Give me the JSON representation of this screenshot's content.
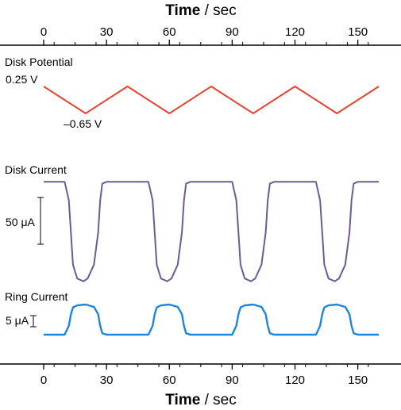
{
  "chart_data": {
    "type": "line",
    "top_axis": {
      "title_bold": "Time",
      "title_unit": " / sec",
      "ticks": [
        0,
        30,
        60,
        90,
        120,
        150
      ],
      "range": [
        0,
        160
      ]
    },
    "bottom_axis": {
      "title_bold": "Time",
      "title_unit": " / sec",
      "ticks": [
        0,
        30,
        60,
        90,
        120,
        150
      ],
      "range": [
        0,
        160
      ]
    },
    "panels": [
      {
        "label": "Disk Potential",
        "color": "#e8432f",
        "annotations": [
          "0.25 V",
          "–0.65 V"
        ],
        "x": [
          0,
          20,
          40,
          60,
          80,
          100,
          120,
          140,
          160
        ],
        "y": [
          0.25,
          -0.65,
          0.25,
          -0.65,
          0.25,
          -0.65,
          0.25,
          -0.65,
          0.25
        ],
        "ylim": [
          -0.65,
          0.25
        ]
      },
      {
        "label": "Disk Current",
        "color": "#6b5a9c",
        "scale_bar": "50 μA",
        "scale_bar_value": 50,
        "x": [
          0,
          10,
          12,
          13,
          14,
          16,
          19,
          21,
          24,
          26,
          27,
          28,
          30,
          40,
          50,
          52,
          53,
          54,
          56,
          59,
          61,
          64,
          66,
          67,
          68,
          70,
          80,
          90,
          92,
          93,
          94,
          96,
          99,
          101,
          104,
          106,
          107,
          108,
          110,
          120,
          130,
          132,
          133,
          134,
          136,
          139,
          141,
          144,
          146,
          147,
          148,
          150,
          160
        ],
        "y": [
          50,
          50,
          30,
          -5,
          -40,
          -55,
          -58,
          -55,
          -40,
          -5,
          30,
          48,
          50,
          50,
          50,
          30,
          -5,
          -40,
          -55,
          -58,
          -55,
          -40,
          -5,
          30,
          48,
          50,
          50,
          50,
          30,
          -5,
          -40,
          -55,
          -58,
          -55,
          -40,
          -5,
          30,
          48,
          50,
          50,
          50,
          30,
          -5,
          -40,
          -55,
          -58,
          -55,
          -40,
          -5,
          30,
          48,
          50,
          50
        ],
        "ylim": [
          -60,
          52
        ]
      },
      {
        "label": "Ring Current",
        "color": "#1b86e0",
        "scale_bar": "5 μA",
        "scale_bar_value": 5,
        "x": [
          0,
          10,
          12,
          13,
          14,
          16,
          20,
          24,
          26,
          27,
          28,
          30,
          40,
          50,
          52,
          53,
          54,
          56,
          60,
          64,
          66,
          67,
          68,
          70,
          80,
          90,
          92,
          93,
          94,
          96,
          100,
          104,
          106,
          107,
          108,
          110,
          120,
          130,
          132,
          133,
          134,
          136,
          140,
          144,
          146,
          147,
          148,
          150,
          160
        ],
        "y": [
          0,
          0,
          3,
          7,
          9.3,
          10,
          10.3,
          9.5,
          7,
          3,
          0.5,
          0,
          0,
          0,
          3,
          7,
          9.3,
          10,
          10.3,
          9.5,
          7,
          3,
          0.5,
          0,
          0,
          0,
          3,
          7,
          9.3,
          10,
          10.3,
          9.5,
          7,
          3,
          0.5,
          0,
          0,
          0,
          3,
          7,
          9.3,
          10,
          10.3,
          9.5,
          7,
          3,
          0.5,
          0,
          0
        ],
        "ylim": [
          0,
          10.3
        ]
      }
    ]
  }
}
